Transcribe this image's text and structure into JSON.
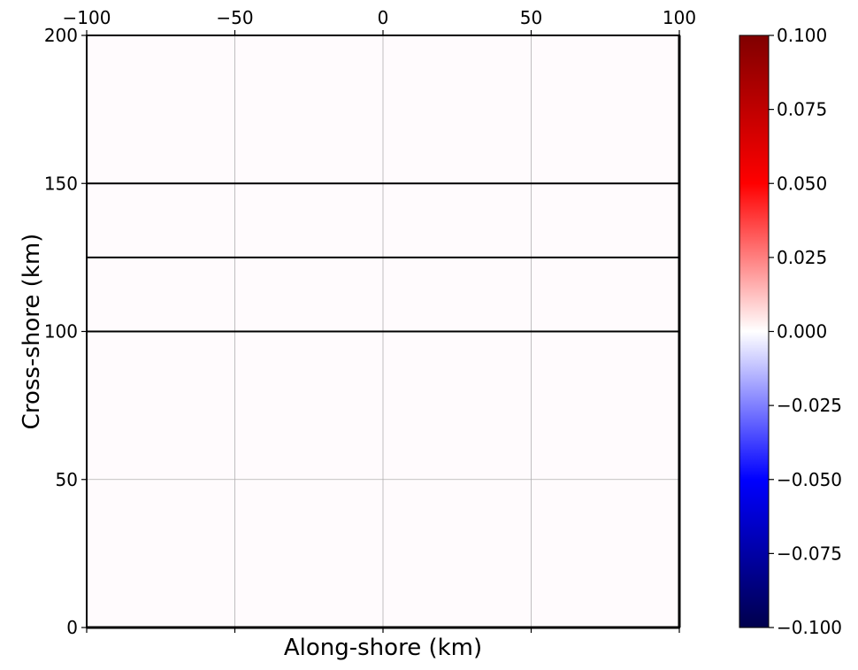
{
  "chart_data": {
    "type": "heatmap",
    "xlabel": "Along-shore (km)",
    "ylabel": "Cross-shore (km)",
    "xlim": [
      -100,
      100
    ],
    "ylim": [
      0,
      200
    ],
    "x_ticks": [
      -100,
      -50,
      0,
      50,
      100
    ],
    "x_tick_labels": [
      "−100",
      "−50",
      "0",
      "50",
      "100"
    ],
    "y_ticks": [
      0,
      50,
      100,
      150,
      200
    ],
    "y_tick_labels": [
      "0",
      "50",
      "100",
      "150",
      "200"
    ],
    "x_tick_labels_position": "top",
    "grid": true,
    "field_value": 0.0,
    "field_color": "#fffbfd",
    "contour_lines_y": [
      100,
      125,
      150
    ],
    "contour_color": "#000000",
    "colorbar": {
      "colormap": "seismic",
      "range": [
        -0.1,
        0.1
      ],
      "ticks": [
        0.1,
        0.075,
        0.05,
        0.025,
        0.0,
        -0.025,
        -0.05,
        -0.075,
        -0.1
      ],
      "tick_labels": [
        "0.100",
        "0.075",
        "0.050",
        "0.025",
        "0.000",
        "−0.025",
        "−0.050",
        "−0.075",
        "−0.100"
      ],
      "placement": "right",
      "colors": [
        "#00004c",
        "#0000ff",
        "#ffffff",
        "#ff0000",
        "#800000"
      ]
    }
  }
}
